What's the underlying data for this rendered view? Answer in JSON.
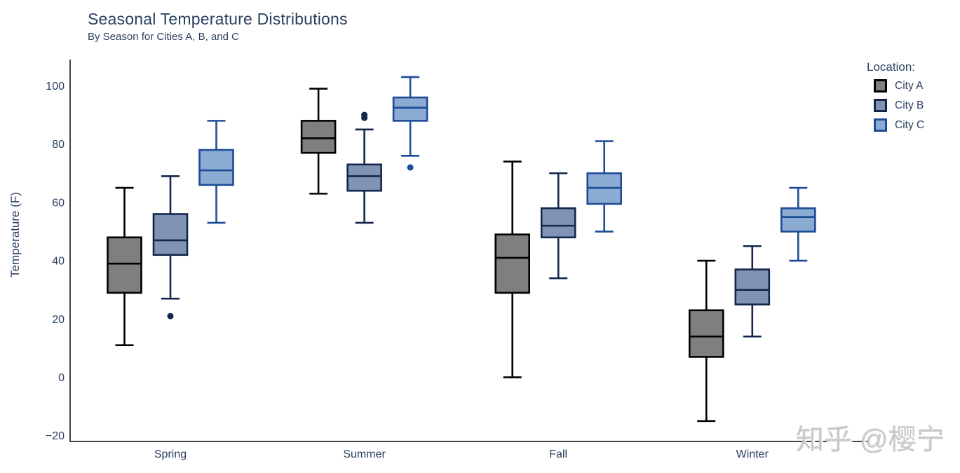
{
  "watermark": "知乎 @樱宁",
  "colors": {
    "text": "#2a3f5f",
    "axis_line": "#444444",
    "background": "#ffffff",
    "watermark": "#c9c9c9"
  },
  "chart_data": {
    "type": "box",
    "title": "Seasonal Temperature Distributions",
    "subtitle": "By Season for Cities A, B, and C",
    "xlabel": "",
    "ylabel": "Temperature (F)",
    "legend_title": "Location:",
    "legend_position": "top-right",
    "grid": false,
    "categories": [
      "Spring",
      "Summer",
      "Fall",
      "Winter"
    ],
    "yticks": [
      100,
      80,
      60,
      40,
      20,
      0,
      -20
    ],
    "ylim": [
      -22,
      109
    ],
    "series": [
      {
        "name": "City A",
        "fill": "#7f7f7f",
        "line": "#000000",
        "boxes": [
          {
            "min": 11,
            "q1": 29,
            "median": 39,
            "q3": 48,
            "max": 65,
            "outliers": []
          },
          {
            "min": 63,
            "q1": 77,
            "median": 82,
            "q3": 88,
            "max": 99,
            "outliers": []
          },
          {
            "min": 0,
            "q1": 29,
            "median": 41,
            "q3": 49,
            "max": 74,
            "outliers": []
          },
          {
            "min": -15,
            "q1": 7,
            "median": 14,
            "q3": 23,
            "max": 40,
            "outliers": []
          }
        ]
      },
      {
        "name": "City B",
        "fill": "#8093b5",
        "line": "#13264d",
        "boxes": [
          {
            "min": 27,
            "q1": 42,
            "median": 47,
            "q3": 56,
            "max": 69,
            "outliers": [
              21
            ]
          },
          {
            "min": 53,
            "q1": 64,
            "median": 69,
            "q3": 73,
            "max": 85,
            "outliers": [
              89,
              90
            ]
          },
          {
            "min": 34,
            "q1": 48,
            "median": 52,
            "q3": 58,
            "max": 70,
            "outliers": []
          },
          {
            "min": 14,
            "q1": 25,
            "median": 30,
            "q3": 37,
            "max": 45,
            "outliers": []
          }
        ]
      },
      {
        "name": "City C",
        "fill": "#8cabd3",
        "line": "#1d4c97",
        "boxes": [
          {
            "min": 53,
            "q1": 66,
            "median": 71,
            "q3": 78,
            "max": 88,
            "outliers": []
          },
          {
            "min": 76,
            "q1": 88,
            "median": 92.5,
            "q3": 96,
            "max": 103,
            "outliers": [
              72
            ]
          },
          {
            "min": 50,
            "q1": 59.5,
            "median": 65,
            "q3": 70,
            "max": 81,
            "outliers": []
          },
          {
            "min": 40,
            "q1": 50,
            "median": 55,
            "q3": 58,
            "max": 65,
            "outliers": []
          }
        ]
      }
    ]
  }
}
